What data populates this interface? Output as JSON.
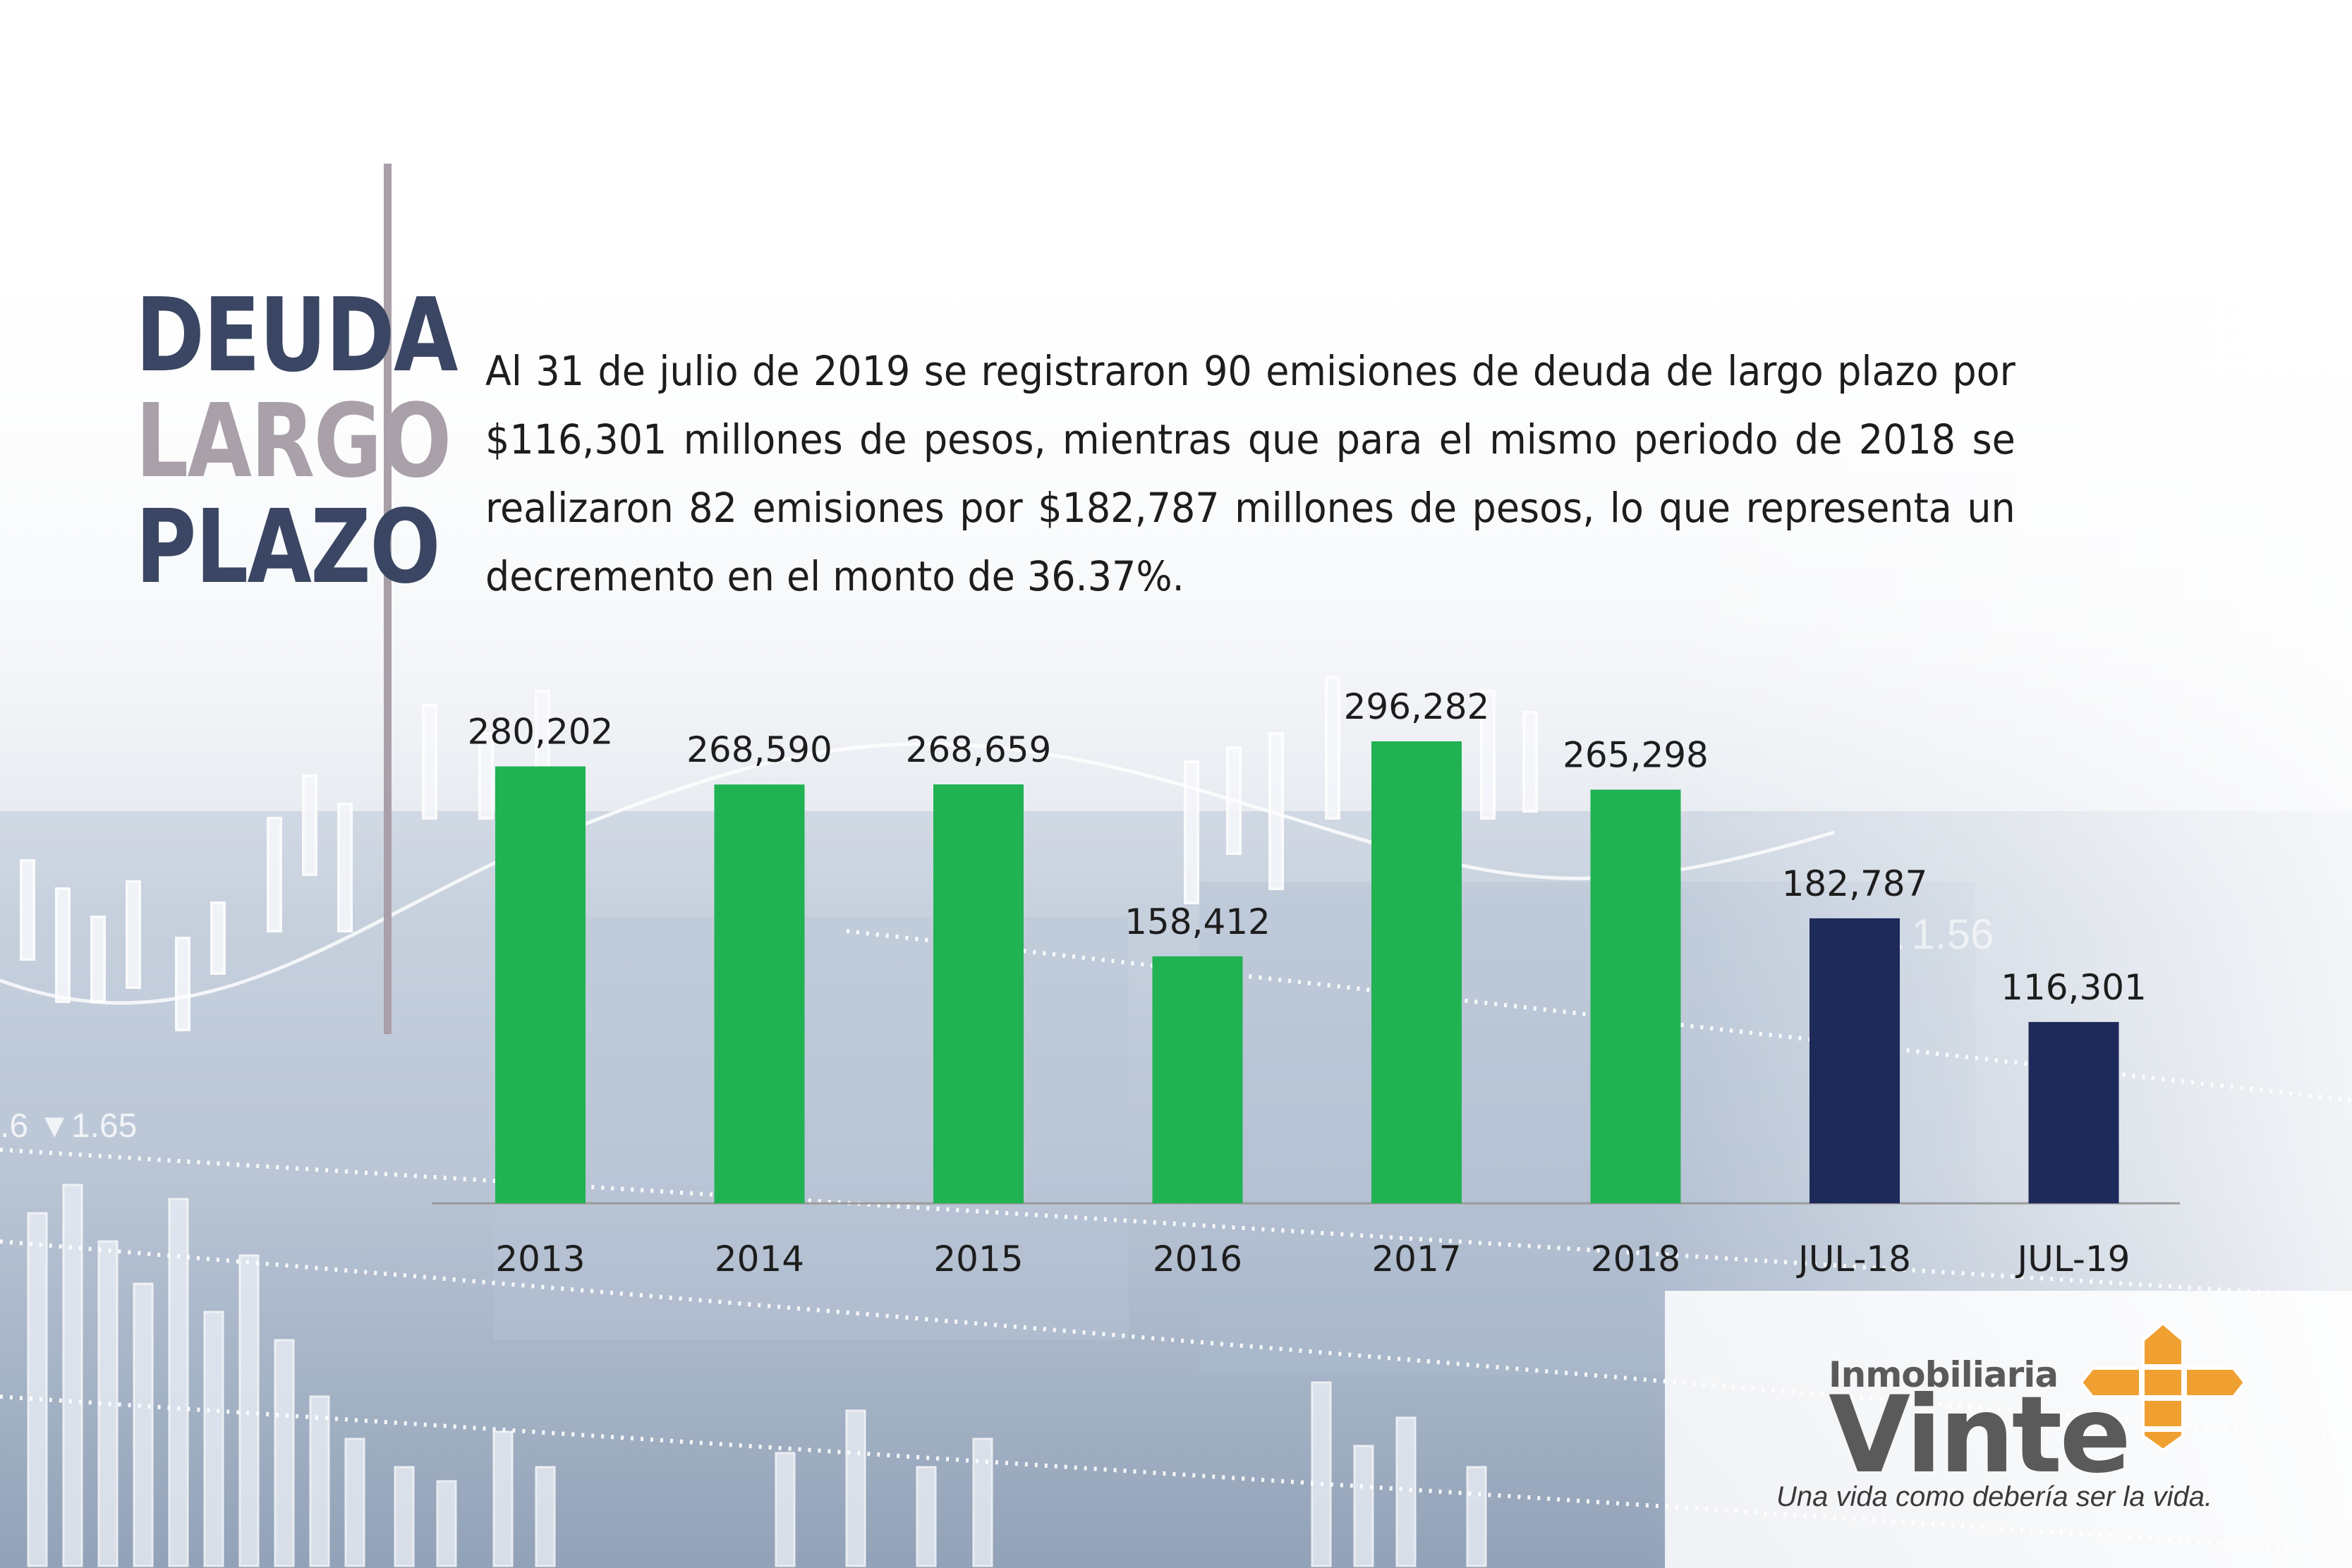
{
  "heading": {
    "line1": "DEUDA",
    "line2": "LARGO",
    "line3": "PLAZO"
  },
  "paragraph": "Al 31 de julio de 2019 se registraron 90 emisiones de deuda de largo plazo por $116,301 millones de pesos, mientras que para el mismo periodo de 2018 se realizaron 82 emisiones por $182,787 millones de pesos, lo que representa un decremento en el monto de 36.37%.",
  "colors": {
    "annual_bar": "#21b253",
    "period_bar": "#1e2a5a",
    "heading_dark": "#3a4663",
    "heading_light": "#a9a0aa",
    "logo_accent": "#f0a030"
  },
  "chart_data": {
    "type": "bar",
    "categories": [
      "2013",
      "2014",
      "2015",
      "2016",
      "2017",
      "2018",
      "JUL-18",
      "JUL-19"
    ],
    "values": [
      280202,
      268590,
      268659,
      158412,
      296282,
      265298,
      182787,
      116301
    ],
    "value_labels": [
      "280,202",
      "268,590",
      "268,659",
      "158,412",
      "296,282",
      "265,298",
      "182,787",
      "116,301"
    ],
    "bar_colors": [
      "#21b253",
      "#21b253",
      "#21b253",
      "#21b253",
      "#21b253",
      "#21b253",
      "#1e2a5a",
      "#1e2a5a"
    ],
    "title": "",
    "xlabel": "",
    "ylabel": "",
    "ylim": [
      0,
      296282
    ],
    "grid": false,
    "legend": "none"
  },
  "logo": {
    "brand_small": "Inmobiliaria",
    "brand_big": "Vinte",
    "tagline": "Una vida como debería ser la vida."
  }
}
